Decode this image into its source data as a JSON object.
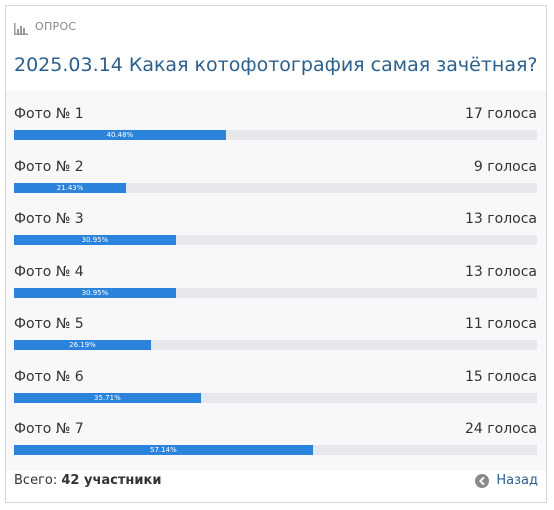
{
  "header": {
    "label": "ОПРОС",
    "icon": "bar-chart-icon"
  },
  "title": "2025.03.14 Какая котофотография самая зачётная?",
  "colors": {
    "accent": "#2b83dc",
    "title": "#2b5f8c",
    "track": "#e6e8ec"
  },
  "options": [
    {
      "label": "Фото № 1",
      "votes": "17 голоса",
      "percent": 40.48,
      "percent_label": "40.48%"
    },
    {
      "label": "Фото № 2",
      "votes": "9 голоса",
      "percent": 21.43,
      "percent_label": "21.43%"
    },
    {
      "label": "Фото № 3",
      "votes": "13 голоса",
      "percent": 30.95,
      "percent_label": "30.95%"
    },
    {
      "label": "Фото № 4",
      "votes": "13 голоса",
      "percent": 30.95,
      "percent_label": "30.95%"
    },
    {
      "label": "Фото № 5",
      "votes": "11 голоса",
      "percent": 26.19,
      "percent_label": "26.19%"
    },
    {
      "label": "Фото № 6",
      "votes": "15 голоса",
      "percent": 35.71,
      "percent_label": "35.71%"
    },
    {
      "label": "Фото № 7",
      "votes": "24 голоса",
      "percent": 57.14,
      "percent_label": "57.14%"
    }
  ],
  "footer": {
    "total_prefix": "Всего:",
    "total_value": "42 участники",
    "back_label": "Назад",
    "back_icon": "arrow-left-circle-icon"
  }
}
